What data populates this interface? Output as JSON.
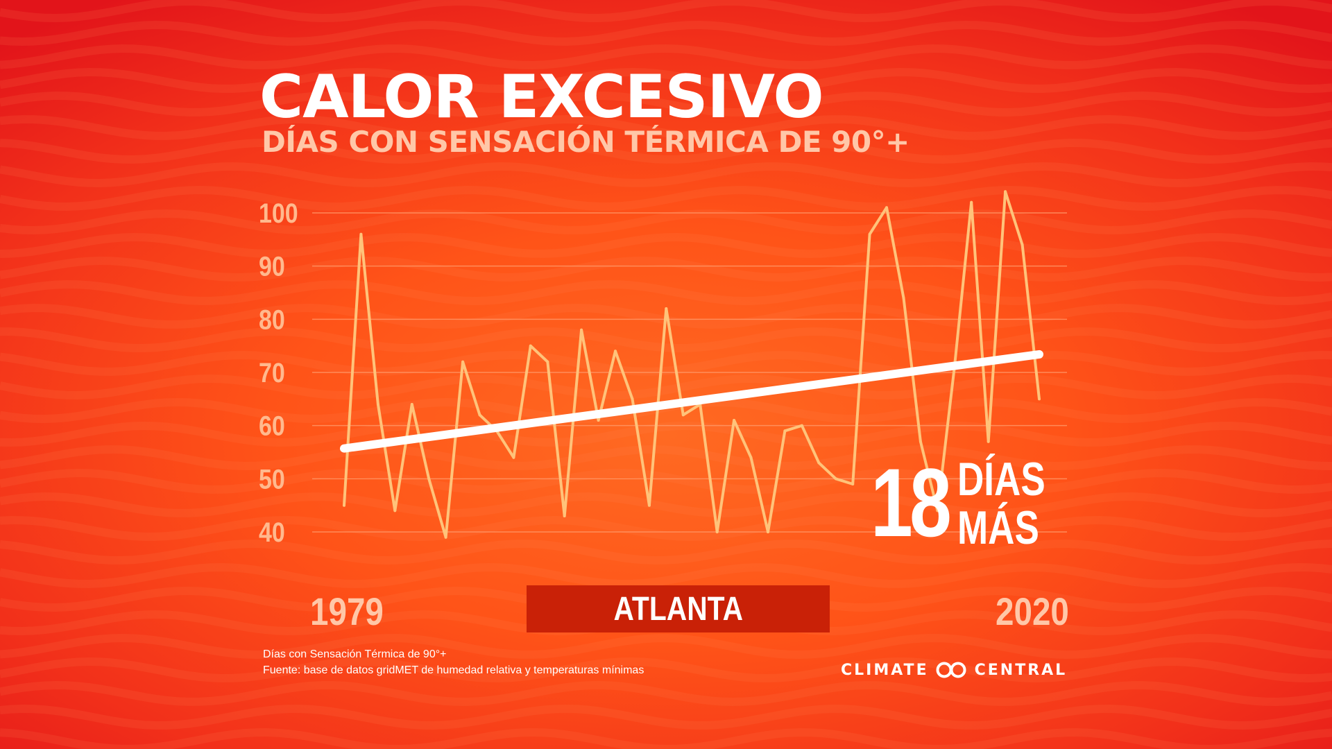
{
  "title": "CALOR EXCESIVO",
  "subtitle": "DÍAS CON SENSACIÓN TÉRMICA DE 90°+",
  "chart_data": {
    "type": "line",
    "title": "CALOR EXCESIVO",
    "subtitle": "DÍAS CON SENSACIÓN TÉRMICA DE 90°+",
    "x_range": [
      1979,
      2020
    ],
    "x_tick_labels": [
      "1979",
      "2020"
    ],
    "yticks": [
      40,
      50,
      60,
      70,
      80,
      90,
      100
    ],
    "ylim": [
      40,
      104
    ],
    "grid": true,
    "series": [
      {
        "values": [
          45,
          96,
          64,
          44,
          64,
          50,
          39,
          72,
          62,
          59,
          54,
          75,
          72,
          43,
          78,
          61,
          74,
          65,
          45,
          82,
          62,
          64,
          40,
          61,
          54,
          40,
          59,
          60,
          53,
          50,
          49,
          96,
          101,
          84,
          57,
          44,
          71,
          102,
          57,
          104,
          94,
          65
        ],
        "color": "#ffc37a"
      }
    ],
    "trend": {
      "start": [
        1979,
        55.7
      ],
      "end": [
        2020,
        73.4
      ],
      "color": "#ffffff"
    },
    "colors": {
      "line": "#ffc37a",
      "trend": "#ffffff",
      "grid": "#ff9a6a",
      "tick_labels": "#ffb98e"
    }
  },
  "callout": {
    "number": "18",
    "unit_line1": "DÍAS",
    "unit_line2": "MÁS"
  },
  "city": "ATLANTA",
  "years": {
    "start": "1979",
    "end": "2020"
  },
  "footnote": {
    "line1": "Días con Sensación Térmica de 90°+",
    "line2": "Fuente: base de datos gridMET de humedad relativa y temperaturas mínimas"
  },
  "brand": {
    "left": "CLIMATE",
    "right": "CENTRAL",
    "logo_icon": "double-ring-icon"
  },
  "colors": {
    "background": "#ff5a1c",
    "city_box": "#c92107",
    "subtitle": "#ffc7a8"
  }
}
